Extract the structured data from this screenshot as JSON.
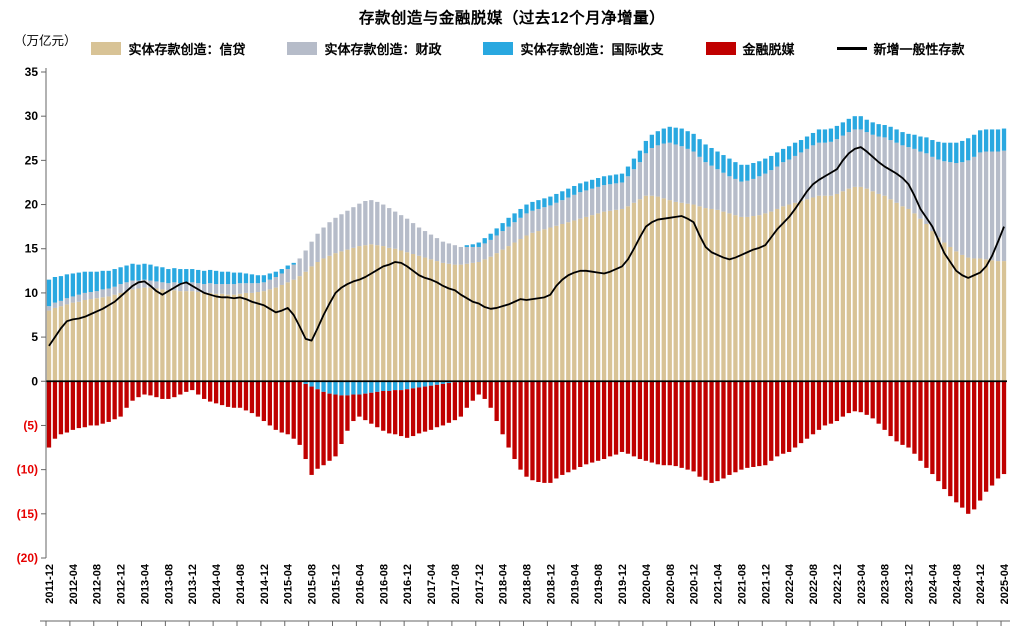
{
  "title": "存款创造与金融脱媒（过去12个月净增量）",
  "unit_label": "（万亿元）",
  "chart_data": {
    "type": "bar",
    "stacked": true,
    "title": "存款创造与金融脱媒（过去12个月净增量）",
    "ylabel": "（万亿元）",
    "ylim": [
      -20,
      35
    ],
    "yticks": [
      35,
      30,
      25,
      20,
      15,
      10,
      5,
      0,
      -5,
      -10,
      -15,
      -20
    ],
    "negative_tick_color": "#e60000",
    "x_monthly_start": "2011-12",
    "x_monthly_end": "2025-04",
    "x_tick_every": 4,
    "x_tick_labels": [
      "2011-12",
      "2012-04",
      "2012-08",
      "2012-12",
      "2013-04",
      "2013-08",
      "2013-12",
      "2014-04",
      "2014-08",
      "2014-12",
      "2015-04",
      "2015-08",
      "2015-12",
      "2016-04",
      "2016-08",
      "2016-12",
      "2017-04",
      "2017-08",
      "2017-12",
      "2018-04",
      "2018-08",
      "2018-12",
      "2019-04",
      "2019-08",
      "2019-12",
      "2020-04",
      "2020-08",
      "2020-12",
      "2021-04",
      "2021-08",
      "2021-12",
      "2022-04",
      "2022-08",
      "2022-12",
      "2023-04",
      "2023-08",
      "2023-12",
      "2024-04",
      "2024-08",
      "2024-12",
      "2025-04"
    ],
    "legend_position": "top",
    "series": [
      {
        "name": "实体存款创造：信贷",
        "type": "bar",
        "color": "#d8c396",
        "values": [
          8.0,
          8.3,
          8.5,
          8.7,
          8.9,
          9.0,
          9.2,
          9.3,
          9.4,
          9.5,
          9.6,
          9.8,
          10.0,
          10.2,
          10.4,
          10.5,
          10.6,
          10.6,
          10.5,
          10.4,
          10.3,
          10.3,
          10.2,
          10.2,
          10.2,
          10.1,
          10.0,
          10.0,
          9.9,
          9.9,
          9.8,
          9.8,
          9.9,
          10.0,
          10.0,
          10.1,
          10.2,
          10.4,
          10.6,
          10.9,
          11.2,
          11.5,
          11.9,
          12.4,
          13.0,
          13.5,
          13.9,
          14.2,
          14.5,
          14.7,
          14.9,
          15.1,
          15.3,
          15.4,
          15.5,
          15.4,
          15.3,
          15.1,
          15.0,
          14.8,
          14.6,
          14.4,
          14.2,
          14.0,
          13.8,
          13.6,
          13.4,
          13.3,
          13.2,
          13.2,
          13.3,
          13.4,
          13.5,
          13.8,
          14.1,
          14.5,
          14.9,
          15.3,
          15.7,
          16.1,
          16.5,
          16.8,
          17.0,
          17.2,
          17.4,
          17.6,
          17.8,
          18.0,
          18.2,
          18.4,
          18.6,
          18.8,
          19.0,
          19.2,
          19.3,
          19.4,
          19.5,
          19.8,
          20.2,
          20.6,
          21.0,
          21.0,
          20.9,
          20.7,
          20.5,
          20.3,
          20.2,
          20.1,
          20.0,
          19.8,
          19.6,
          19.5,
          19.4,
          19.2,
          19.0,
          18.8,
          18.6,
          18.6,
          18.7,
          18.8,
          19.0,
          19.2,
          19.5,
          19.8,
          20.0,
          20.2,
          20.4,
          20.6,
          20.8,
          21.0,
          21.0,
          21.0,
          21.2,
          21.5,
          21.8,
          22.0,
          22.0,
          21.8,
          21.5,
          21.2,
          21.0,
          20.6,
          20.2,
          19.8,
          19.5,
          19.0,
          18.4,
          17.8,
          17.0,
          16.3,
          15.7,
          15.2,
          14.7,
          14.3,
          14.0,
          13.9,
          13.9,
          13.8,
          13.7,
          13.6,
          13.6
        ]
      },
      {
        "name": "实体存款创造：财政",
        "type": "bar",
        "color": "#b6bcc9",
        "values": [
          0.5,
          0.6,
          0.6,
          0.7,
          0.7,
          0.8,
          0.8,
          0.8,
          0.8,
          0.9,
          0.9,
          0.9,
          1.0,
          1.0,
          1.0,
          0.9,
          0.9,
          0.8,
          0.8,
          0.8,
          0.8,
          0.9,
          0.9,
          1.0,
          1.0,
          1.0,
          1.0,
          1.1,
          1.1,
          1.1,
          1.2,
          1.2,
          1.2,
          1.1,
          1.1,
          1.0,
          1.0,
          1.1,
          1.2,
          1.3,
          1.5,
          1.7,
          2.0,
          2.4,
          2.8,
          3.2,
          3.5,
          3.8,
          4.0,
          4.2,
          4.4,
          4.6,
          4.8,
          5.0,
          5.0,
          4.9,
          4.7,
          4.5,
          4.2,
          4.0,
          3.8,
          3.5,
          3.2,
          3.0,
          2.8,
          2.6,
          2.4,
          2.3,
          2.2,
          2.0,
          1.9,
          1.8,
          1.7,
          1.8,
          1.9,
          2.0,
          2.1,
          2.2,
          2.3,
          2.4,
          2.5,
          2.5,
          2.5,
          2.5,
          2.5,
          2.6,
          2.7,
          2.8,
          2.9,
          3.0,
          3.0,
          3.0,
          3.0,
          3.0,
          3.0,
          3.0,
          3.0,
          3.4,
          3.8,
          4.2,
          4.8,
          5.4,
          5.8,
          6.2,
          6.5,
          6.5,
          6.4,
          6.2,
          6.0,
          5.6,
          5.2,
          4.9,
          4.6,
          4.4,
          4.2,
          4.1,
          4.0,
          4.1,
          4.2,
          4.4,
          4.5,
          4.7,
          4.8,
          5.0,
          5.1,
          5.3,
          5.5,
          5.7,
          5.9,
          6.0,
          6.0,
          6.1,
          6.2,
          6.3,
          6.4,
          6.5,
          6.5,
          6.4,
          6.4,
          6.5,
          6.6,
          6.7,
          6.8,
          6.9,
          7.0,
          7.3,
          7.6,
          8.0,
          8.4,
          8.8,
          9.2,
          9.6,
          10.0,
          10.5,
          11.0,
          11.5,
          12.0,
          12.2,
          12.3,
          12.4,
          12.5
        ]
      },
      {
        "name": "实体存款创造：国际收支",
        "type": "bar",
        "color": "#29a8e0",
        "values": [
          3.0,
          2.9,
          2.8,
          2.7,
          2.6,
          2.5,
          2.4,
          2.3,
          2.2,
          2.1,
          2.0,
          2.0,
          1.9,
          1.9,
          1.9,
          1.8,
          1.8,
          1.8,
          1.7,
          1.7,
          1.6,
          1.6,
          1.6,
          1.5,
          1.5,
          1.5,
          1.5,
          1.5,
          1.5,
          1.4,
          1.4,
          1.3,
          1.2,
          1.1,
          1.0,
          0.9,
          0.8,
          0.7,
          0.6,
          0.5,
          0.4,
          0.2,
          0.0,
          -0.3,
          -0.6,
          -0.9,
          -1.2,
          -1.4,
          -1.5,
          -1.6,
          -1.6,
          -1.5,
          -1.5,
          -1.4,
          -1.3,
          -1.2,
          -1.1,
          -1.1,
          -1.0,
          -1.0,
          -0.9,
          -0.8,
          -0.7,
          -0.6,
          -0.5,
          -0.4,
          -0.3,
          -0.2,
          -0.1,
          0.0,
          0.2,
          0.3,
          0.5,
          0.6,
          0.7,
          0.8,
          0.9,
          1.0,
          1.0,
          1.0,
          1.0,
          1.0,
          1.0,
          1.0,
          1.0,
          1.0,
          1.0,
          1.0,
          1.0,
          1.0,
          1.0,
          1.0,
          1.0,
          1.0,
          1.0,
          1.0,
          1.0,
          1.1,
          1.2,
          1.3,
          1.4,
          1.5,
          1.6,
          1.7,
          1.8,
          1.9,
          2.0,
          2.0,
          2.0,
          2.0,
          2.0,
          2.0,
          2.0,
          2.0,
          2.0,
          1.9,
          1.9,
          1.8,
          1.8,
          1.7,
          1.7,
          1.6,
          1.6,
          1.5,
          1.5,
          1.5,
          1.4,
          1.4,
          1.4,
          1.5,
          1.5,
          1.5,
          1.5,
          1.5,
          1.5,
          1.5,
          1.5,
          1.4,
          1.4,
          1.4,
          1.4,
          1.5,
          1.5,
          1.5,
          1.5,
          1.6,
          1.7,
          1.8,
          1.9,
          2.0,
          2.1,
          2.2,
          2.3,
          2.4,
          2.5,
          2.5,
          2.5,
          2.5,
          2.5,
          2.5,
          2.5
        ]
      },
      {
        "name": "金融脱媒",
        "type": "bar",
        "color": "#c00000",
        "values": [
          -7.5,
          -6.5,
          -6.0,
          -5.8,
          -5.5,
          -5.3,
          -5.2,
          -5.0,
          -5.0,
          -4.8,
          -4.6,
          -4.3,
          -4.0,
          -3.0,
          -2.2,
          -1.8,
          -1.5,
          -1.6,
          -1.8,
          -2.0,
          -2.0,
          -1.8,
          -1.5,
          -1.2,
          -1.0,
          -1.5,
          -2.0,
          -2.3,
          -2.5,
          -2.7,
          -2.9,
          -3.0,
          -3.0,
          -3.3,
          -3.6,
          -4.0,
          -4.5,
          -5.0,
          -5.5,
          -5.8,
          -6.0,
          -6.5,
          -7.2,
          -8.5,
          -10.0,
          -9.0,
          -8.3,
          -7.6,
          -7.0,
          -5.5,
          -4.0,
          -3.0,
          -2.5,
          -3.0,
          -3.5,
          -4.0,
          -4.5,
          -4.8,
          -5.0,
          -5.2,
          -5.5,
          -5.4,
          -5.2,
          -5.1,
          -5.0,
          -4.8,
          -4.7,
          -4.5,
          -4.3,
          -4.0,
          -3.0,
          -2.2,
          -1.5,
          -2.0,
          -3.0,
          -4.5,
          -6.0,
          -7.5,
          -8.8,
          -10.0,
          -10.8,
          -11.2,
          -11.4,
          -11.5,
          -11.5,
          -11.0,
          -10.6,
          -10.3,
          -10.0,
          -9.7,
          -9.4,
          -9.2,
          -9.0,
          -8.8,
          -8.5,
          -8.3,
          -8.0,
          -8.2,
          -8.5,
          -8.8,
          -9.0,
          -9.2,
          -9.4,
          -9.5,
          -9.5,
          -9.6,
          -9.8,
          -10.0,
          -10.2,
          -10.8,
          -11.2,
          -11.5,
          -11.3,
          -11.0,
          -10.6,
          -10.3,
          -10.0,
          -9.8,
          -9.7,
          -9.6,
          -9.5,
          -9.0,
          -8.5,
          -8.2,
          -8.0,
          -7.5,
          -7.0,
          -6.5,
          -6.0,
          -5.5,
          -5.0,
          -4.8,
          -4.5,
          -4.0,
          -3.6,
          -3.4,
          -3.5,
          -3.8,
          -4.2,
          -4.8,
          -5.5,
          -6.2,
          -6.8,
          -7.2,
          -7.5,
          -8.2,
          -9.0,
          -9.8,
          -10.5,
          -11.3,
          -12.2,
          -13.0,
          -13.7,
          -14.3,
          -15.0,
          -14.5,
          -13.5,
          -12.5,
          -11.8,
          -11.0,
          -10.5
        ]
      },
      {
        "name": "新增一般性存款",
        "type": "line",
        "color": "#000000",
        "values": [
          4.0,
          5.0,
          6.0,
          6.8,
          7.0,
          7.1,
          7.3,
          7.6,
          7.9,
          8.2,
          8.6,
          9.0,
          9.6,
          10.2,
          10.8,
          11.2,
          11.3,
          10.8,
          10.2,
          9.8,
          10.2,
          10.6,
          11.0,
          11.2,
          10.8,
          10.4,
          10.0,
          9.8,
          9.6,
          9.5,
          9.5,
          9.4,
          9.5,
          9.3,
          9.0,
          8.8,
          8.6,
          8.2,
          7.8,
          8.0,
          8.3,
          7.5,
          6.2,
          4.8,
          4.6,
          6.0,
          7.5,
          8.8,
          10.0,
          10.6,
          11.0,
          11.3,
          11.5,
          11.8,
          12.2,
          12.6,
          13.0,
          13.2,
          13.5,
          13.4,
          13.0,
          12.5,
          12.0,
          11.7,
          11.5,
          11.2,
          10.8,
          10.5,
          10.3,
          9.8,
          9.4,
          9.0,
          8.8,
          8.4,
          8.2,
          8.3,
          8.5,
          8.7,
          9.0,
          9.3,
          9.2,
          9.3,
          9.4,
          9.5,
          9.8,
          10.8,
          11.5,
          12.0,
          12.3,
          12.5,
          12.5,
          12.4,
          12.3,
          12.2,
          12.4,
          12.7,
          13.0,
          13.8,
          15.0,
          16.3,
          17.5,
          18.0,
          18.3,
          18.4,
          18.5,
          18.6,
          18.7,
          18.4,
          18.0,
          16.5,
          15.2,
          14.6,
          14.3,
          14.0,
          13.8,
          14.0,
          14.3,
          14.6,
          14.9,
          15.1,
          15.4,
          16.3,
          17.2,
          17.9,
          18.6,
          19.5,
          20.5,
          21.5,
          22.3,
          22.8,
          23.2,
          23.6,
          24.0,
          25.0,
          25.8,
          26.3,
          26.5,
          26.0,
          25.4,
          24.8,
          24.3,
          23.9,
          23.5,
          23.0,
          22.3,
          21.0,
          19.5,
          18.5,
          17.5,
          16.0,
          14.5,
          13.5,
          12.5,
          12.0,
          11.7,
          12.0,
          12.3,
          13.0,
          14.2,
          15.8,
          17.5
        ]
      }
    ]
  }
}
